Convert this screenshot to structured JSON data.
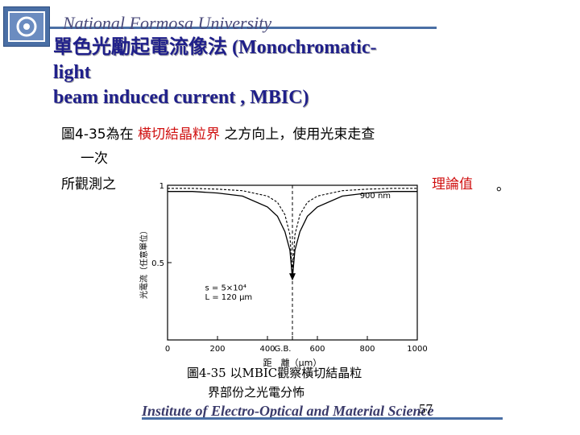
{
  "header": {
    "university": "National Formosa University",
    "title_line1": "單色光勵起電流像法 (Monochromatic-",
    "title_line2": "light",
    "title_line3": "beam induced current , MBIC)"
  },
  "body": {
    "line1_prefix": "圖4-35為在 ",
    "line1_red": "橫切結晶粒界",
    "line1_suffix": " 之方向上，使用光束走查",
    "line2": "一次",
    "line3_prefix": "所觀測之",
    "line3_red": "理論值",
    "line3_suffix": "。"
  },
  "figure": {
    "caption_line1": "圖4-35  以MBIC觀察橫切結晶粒",
    "caption_line2": "界部份之光電分怖"
  },
  "chart_data": {
    "type": "line",
    "xlabel": "距　離（μm）",
    "ylabel": "光電流（任意單位）",
    "xlim": [
      0,
      1000
    ],
    "ylim": [
      0,
      1
    ],
    "x_ticks": [
      "0",
      "200",
      "400",
      "G.B.",
      "600",
      "800",
      "1000"
    ],
    "y_ticks": [
      "0.5",
      "1"
    ],
    "grid": false,
    "boundary_x": 500,
    "annotations": [
      "900 nm",
      "s = 5×10⁴",
      "L = 120 μm"
    ],
    "series": [
      {
        "x": [
          0,
          100,
          200,
          300,
          400,
          440,
          470,
          490,
          500,
          510,
          530,
          560,
          600,
          700,
          800,
          900,
          1000
        ],
        "y": [
          0.96,
          0.96,
          0.95,
          0.93,
          0.86,
          0.8,
          0.7,
          0.58,
          0.4,
          0.58,
          0.7,
          0.8,
          0.86,
          0.93,
          0.95,
          0.96,
          0.96
        ]
      },
      {
        "x": [
          0,
          100,
          200,
          300,
          400,
          440,
          470,
          490,
          500,
          510,
          530,
          560,
          600,
          700,
          800,
          900,
          1000
        ],
        "y": [
          0.98,
          0.98,
          0.975,
          0.965,
          0.93,
          0.89,
          0.81,
          0.68,
          0.4,
          0.68,
          0.81,
          0.89,
          0.93,
          0.965,
          0.975,
          0.98,
          0.98
        ]
      }
    ]
  },
  "footer": {
    "institute": "Institute of Electro-Optical and Material Science",
    "page_number": "57"
  }
}
